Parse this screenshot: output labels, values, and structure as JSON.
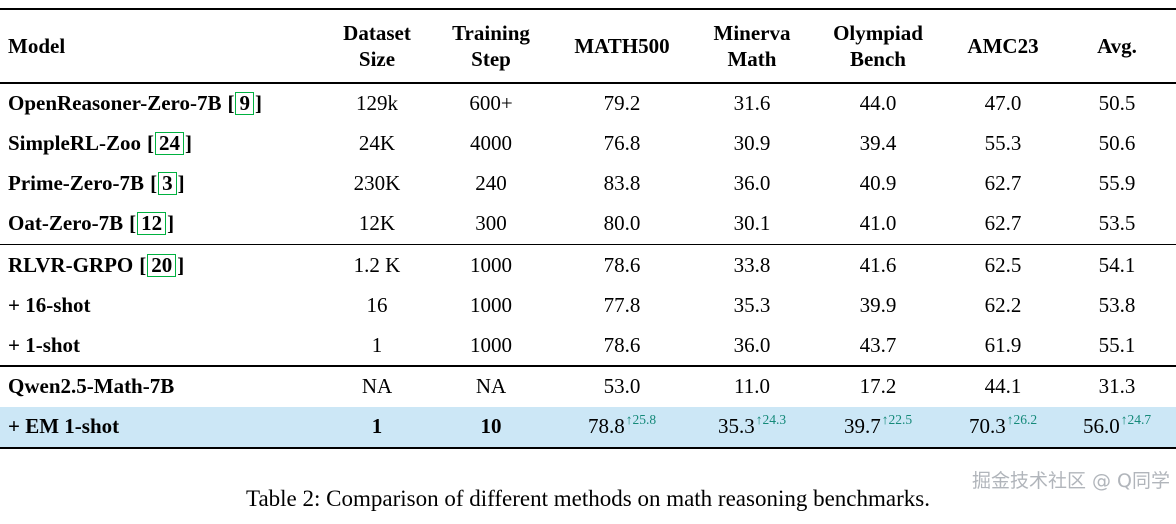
{
  "colors": {
    "highlight_row": "#cce7f6",
    "citation_box_green": "#00b140",
    "delta_teal": "#148979"
  },
  "header": {
    "columns": [
      "Model",
      "Dataset\nSize",
      "Training\nStep",
      "MATH500",
      "Minerva\nMath",
      "Olympiad\nBench",
      "AMC23",
      "Avg."
    ]
  },
  "rows": [
    {
      "model": "OpenReasoner-Zero-7B",
      "cite": "9",
      "dataset": "129k",
      "step": "600+",
      "math500": "79.2",
      "minerva": "31.6",
      "olympiad": "44.0",
      "amc23": "47.0",
      "avg": "50.5"
    },
    {
      "model": "SimpleRL-Zoo",
      "cite": "24",
      "dataset": "24K",
      "step": "4000",
      "math500": "76.8",
      "minerva": "30.9",
      "olympiad": "39.4",
      "amc23": "55.3",
      "avg": "50.6"
    },
    {
      "model": "Prime-Zero-7B",
      "cite": "3",
      "dataset": "230K",
      "step": "240",
      "math500": "83.8",
      "minerva": "36.0",
      "olympiad": "40.9",
      "amc23": "62.7",
      "avg": "55.9"
    },
    {
      "model": "Oat-Zero-7B",
      "cite": "12",
      "dataset": "12K",
      "step": "300",
      "math500": "80.0",
      "minerva": "30.1",
      "olympiad": "41.0",
      "amc23": "62.7",
      "avg": "53.5"
    },
    {
      "model": "RLVR-GRPO",
      "cite": "20",
      "dataset": "1.2 K",
      "step": "1000",
      "math500": "78.6",
      "minerva": "33.8",
      "olympiad": "41.6",
      "amc23": "62.5",
      "avg": "54.1"
    },
    {
      "model": "+ 16-shot",
      "dataset": "16",
      "step": "1000",
      "math500": "77.8",
      "minerva": "35.3",
      "olympiad": "39.9",
      "amc23": "62.2",
      "avg": "53.8"
    },
    {
      "model": "+ 1-shot",
      "dataset": "1",
      "step": "1000",
      "math500": "78.6",
      "minerva": "36.0",
      "olympiad": "43.7",
      "amc23": "61.9",
      "avg": "55.1"
    },
    {
      "model": "Qwen2.5-Math-7B",
      "dataset": "NA",
      "step": "NA",
      "math500": "53.0",
      "minerva": "11.0",
      "olympiad": "17.2",
      "amc23": "44.1",
      "avg": "31.3"
    },
    {
      "model": "+ EM 1-shot",
      "dataset": "1",
      "step": "10",
      "math500": "78.8",
      "d_math500": "↑25.8",
      "minerva": "35.3",
      "d_minerva": "↑24.3",
      "olympiad": "39.7",
      "d_olympiad": "↑22.5",
      "amc23": "70.3",
      "d_amc23": "↑26.2",
      "avg": "56.0",
      "d_avg": "↑24.7"
    }
  ],
  "caption": "Table 2: Comparison of different methods on math reasoning benchmarks.",
  "watermark": "掘金技术社区 @ Q同学"
}
